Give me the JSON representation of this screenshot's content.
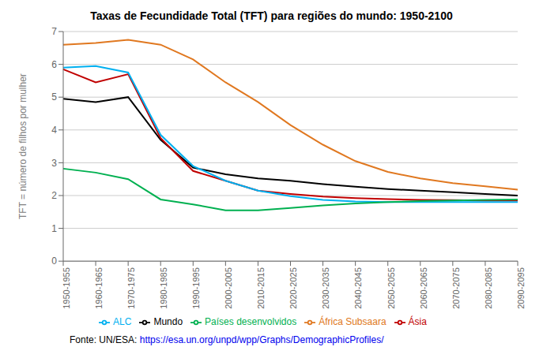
{
  "chart_data": {
    "type": "line",
    "title": "Taxas de Fecundidade Total (TFT) para regiões do mundo: 1950-2100",
    "ylabel": "TFT = número de filhos por mulher",
    "annotations": [
      "Fonte: UN/ESA: ",
      "https://esa.un.org/unpd/wpp/Graphs/DemographicProfiles/"
    ],
    "categories": [
      "1950-1955",
      "1960-1965",
      "1970-1975",
      "1980-1985",
      "1990-1995",
      "2000-2005",
      "2010-2015",
      "2020-2025",
      "2030-2035",
      "2040-2045",
      "2050-2055",
      "2060-2065",
      "2070-2075",
      "2080-2085",
      "2090-2095"
    ],
    "series": [
      {
        "name": "Mundo",
        "color": "#000000",
        "values": [
          4.95,
          4.85,
          5.0,
          3.7,
          2.85,
          2.65,
          2.52,
          2.45,
          2.35,
          2.27,
          2.2,
          2.15,
          2.1,
          2.05,
          2.0
        ]
      },
      {
        "name": "África Subsaara",
        "color": "#e07820",
        "values": [
          6.6,
          6.65,
          6.75,
          6.6,
          6.15,
          5.45,
          4.85,
          4.15,
          3.55,
          3.05,
          2.72,
          2.52,
          2.38,
          2.28,
          2.18
        ]
      },
      {
        "name": "Ásia",
        "color": "#c00000",
        "values": [
          5.85,
          5.45,
          5.7,
          3.75,
          2.75,
          2.45,
          2.15,
          2.05,
          1.97,
          1.92,
          1.89,
          1.87,
          1.86,
          1.85,
          1.85
        ]
      },
      {
        "name": "ALC",
        "color": "#00b0f0",
        "values": [
          5.9,
          5.95,
          5.75,
          3.85,
          2.9,
          2.45,
          2.15,
          1.98,
          1.87,
          1.82,
          1.8,
          1.8,
          1.8,
          1.8,
          1.8
        ]
      },
      {
        "name": "Países desenvolvidos",
        "color": "#00b050",
        "values": [
          2.82,
          2.7,
          2.5,
          1.88,
          1.73,
          1.55,
          1.55,
          1.62,
          1.7,
          1.76,
          1.8,
          1.83,
          1.85,
          1.87,
          1.88
        ]
      }
    ],
    "ylim": [
      0,
      7
    ],
    "yticks": [
      0,
      1,
      2,
      3,
      4,
      5,
      6,
      7
    ],
    "grid": true,
    "legend": "bottom"
  }
}
